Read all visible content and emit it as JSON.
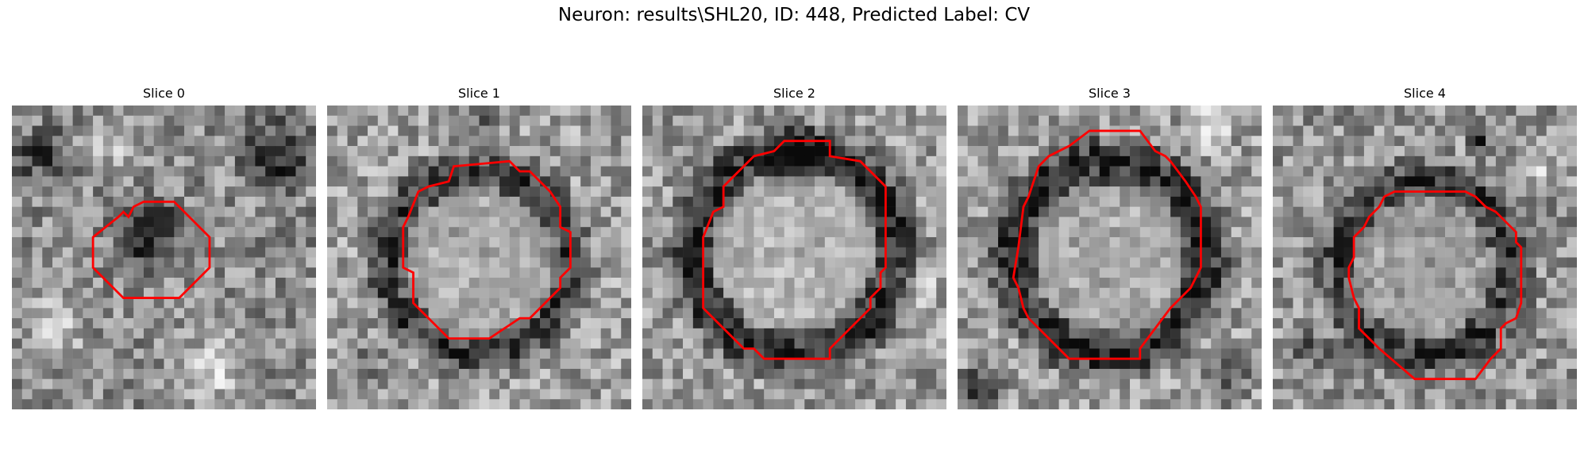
{
  "figure": {
    "title": "Neuron: results\\SHL20, ID: 448, Predicted Label: CV"
  },
  "slices": [
    {
      "title": "Slice 0"
    },
    {
      "title": "Slice 1"
    },
    {
      "title": "Slice 2"
    },
    {
      "title": "Slice 3"
    },
    {
      "title": "Slice 4"
    }
  ],
  "colors": {
    "contour": "#ff0000",
    "colormap": "gray"
  }
}
